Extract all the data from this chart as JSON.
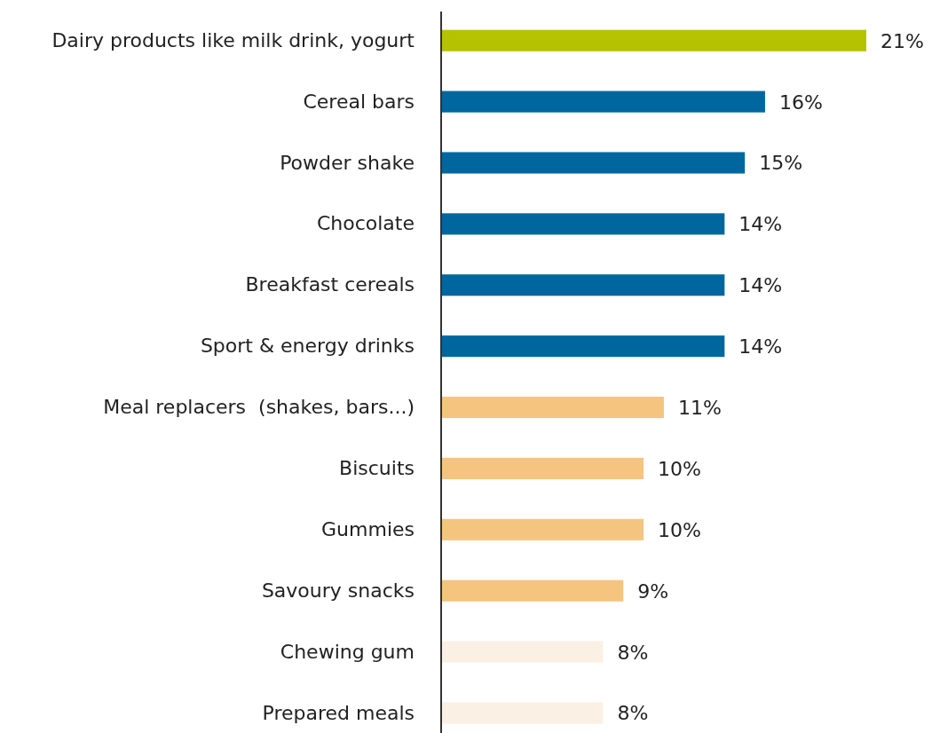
{
  "chart_data": {
    "type": "bar",
    "orientation": "horizontal",
    "categories": [
      "Dairy products like milk drink, yogurt",
      "Cereal bars",
      "Powder shake",
      "Chocolate",
      "Breakfast cereals",
      "Sport & energy drinks",
      "Meal replacers  (shakes, bars...)",
      "Biscuits",
      "Gummies",
      "Savoury snacks",
      "Chewing gum",
      "Prepared meals"
    ],
    "values": [
      21,
      16,
      15,
      14,
      14,
      14,
      11,
      10,
      10,
      9,
      8,
      8
    ],
    "value_labels": [
      "21%",
      "16%",
      "15%",
      "14%",
      "14%",
      "14%",
      "11%",
      "10%",
      "10%",
      "9%",
      "8%",
      "8%"
    ],
    "colors": [
      "#b5c200",
      "#00679e",
      "#00679e",
      "#00679e",
      "#00679e",
      "#00679e",
      "#f5c57f",
      "#f5c57f",
      "#f5c57f",
      "#f5c57f",
      "#fbf0e4",
      "#fbf0e4"
    ],
    "xlim": [
      0,
      21
    ],
    "tick_labels": "y"
  }
}
